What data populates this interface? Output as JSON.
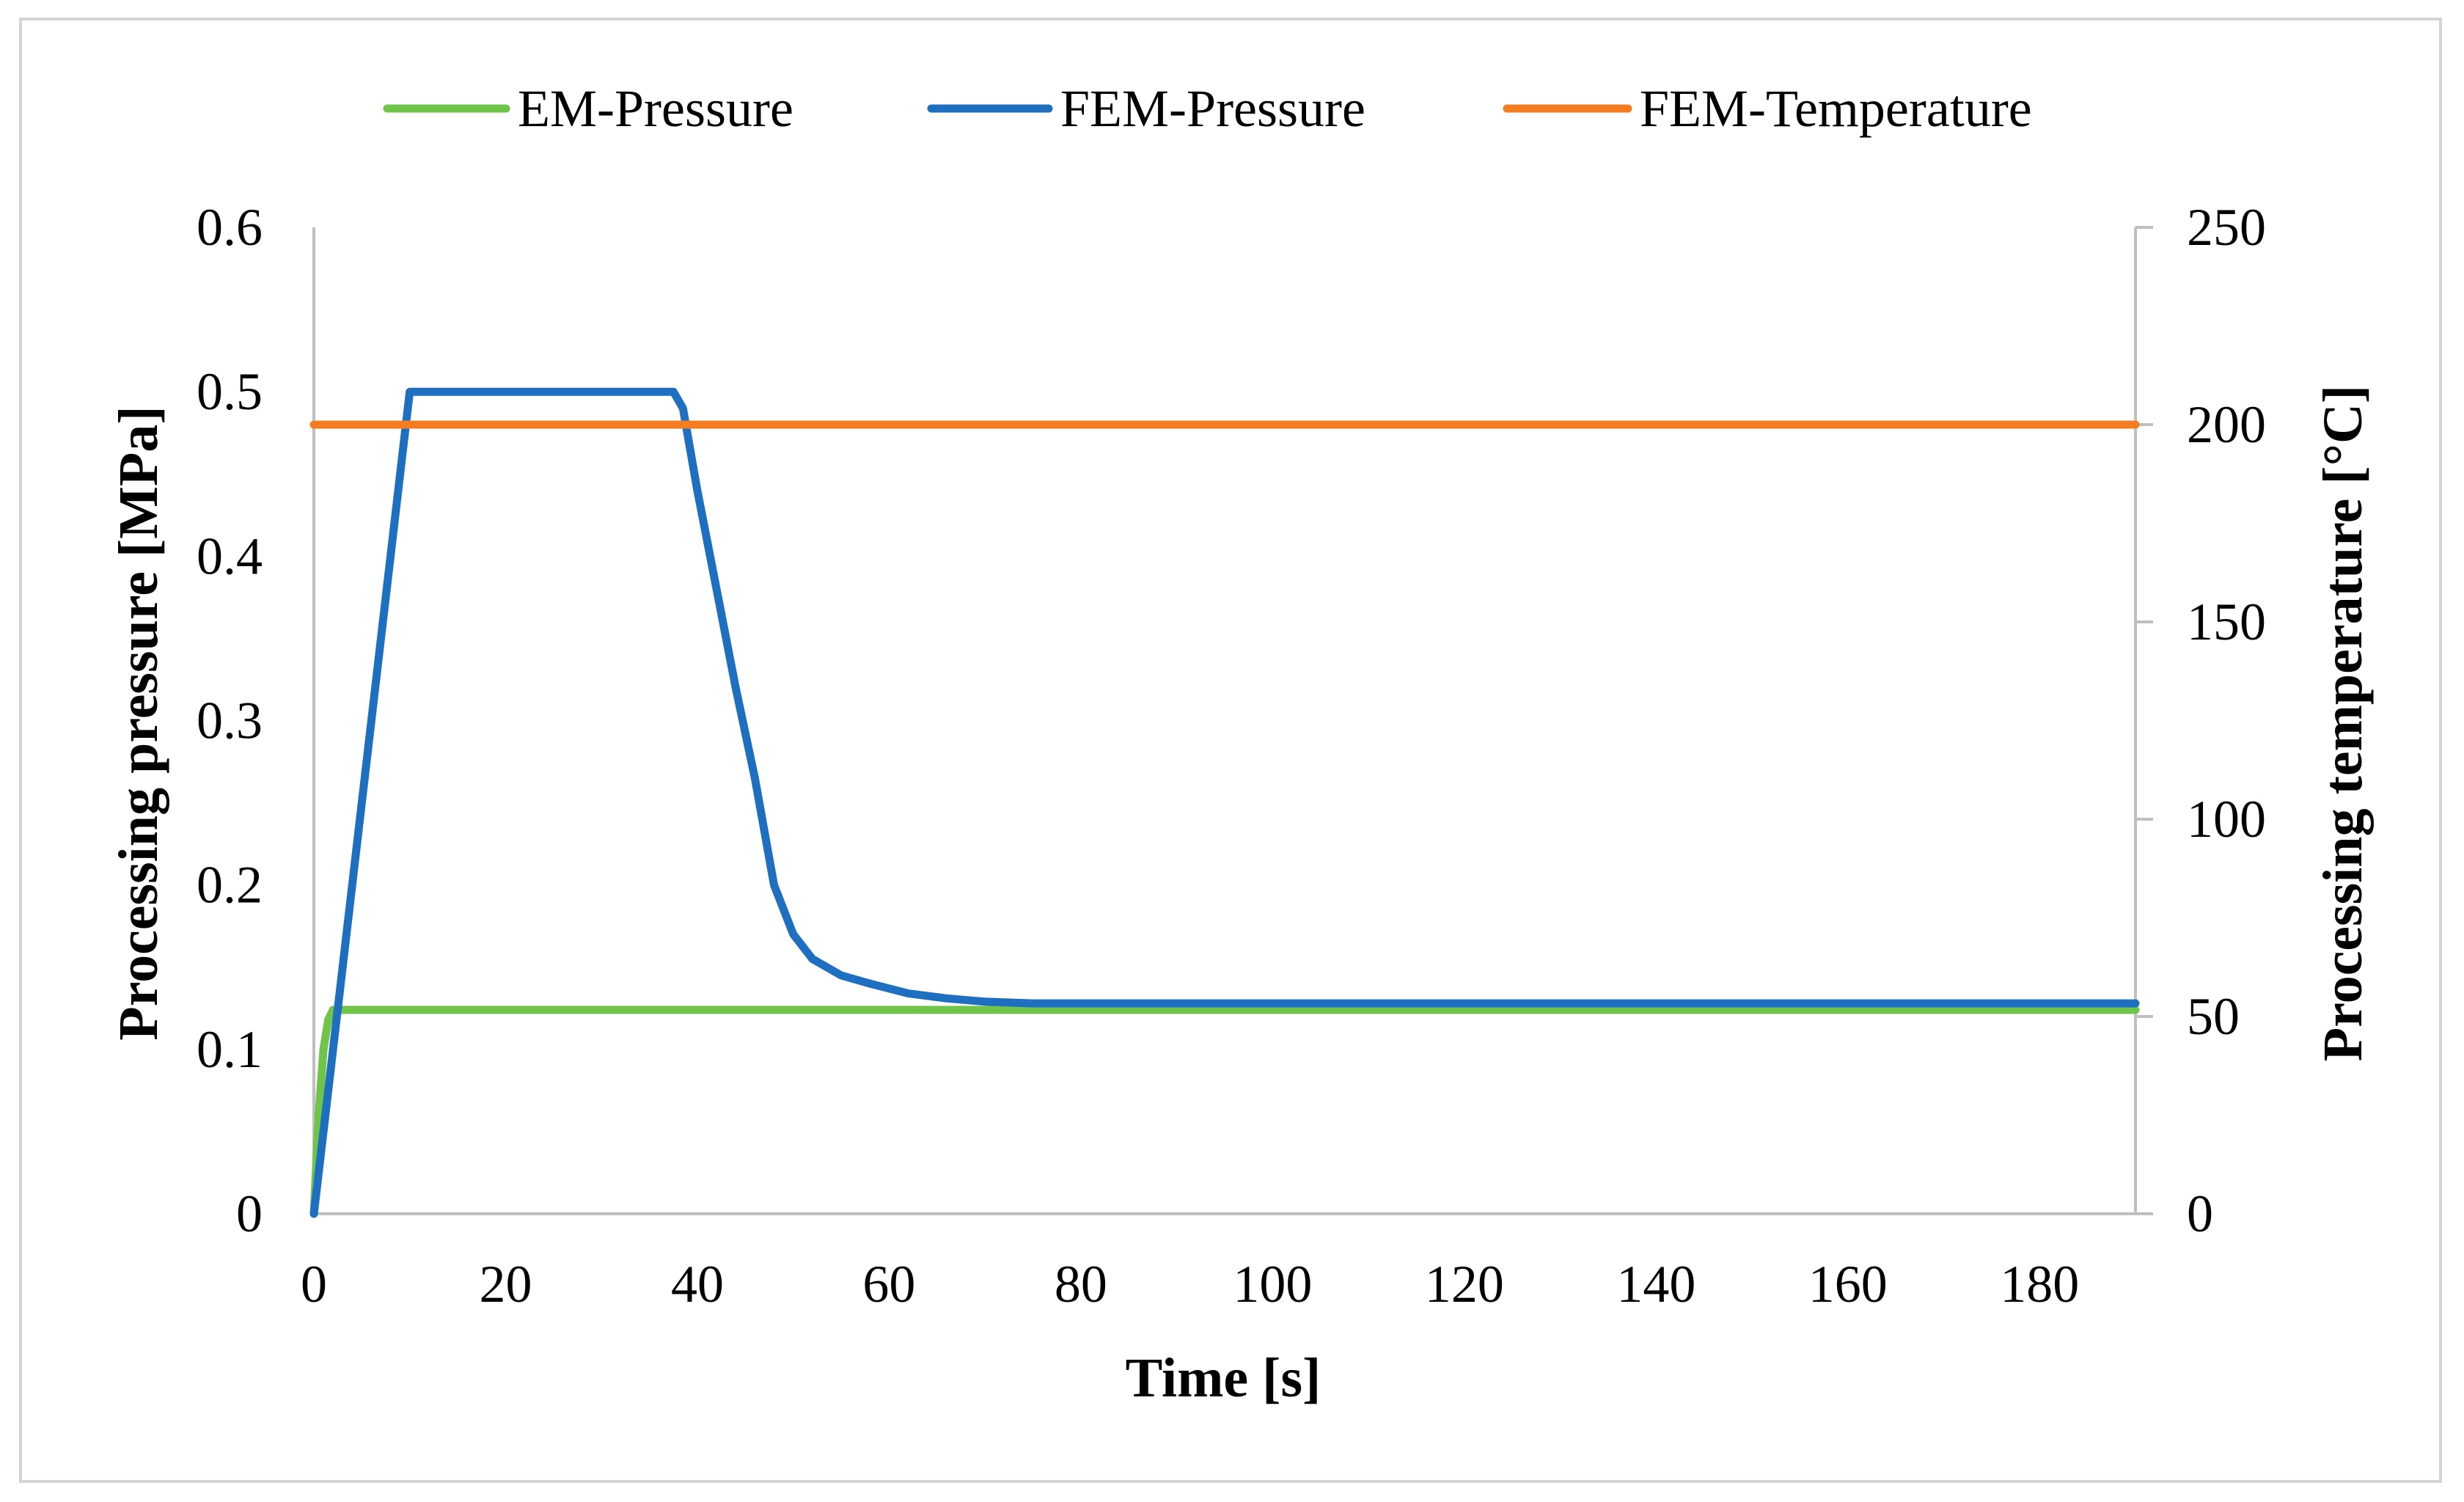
{
  "chart_data": {
    "type": "line",
    "title": "",
    "xlabel": "Time [s]",
    "ylabel": "Processing pressure [MPa]",
    "y2label": "Processing temperature [°C]",
    "xlim": [
      0,
      190
    ],
    "ylim": [
      0,
      0.6
    ],
    "y2lim": [
      0,
      250
    ],
    "xticks": [
      0,
      20,
      40,
      60,
      80,
      100,
      120,
      140,
      160,
      180
    ],
    "xtick_labels": [
      "0",
      "20",
      "40",
      "60",
      "80",
      "100",
      "120",
      "140",
      "160",
      "180"
    ],
    "yticks": [
      0,
      0.1,
      0.2,
      0.3,
      0.4,
      0.5,
      0.6
    ],
    "ytick_labels": [
      "0",
      "0.1",
      "0.2",
      "0.3",
      "0.4",
      "0.5",
      "0.6"
    ],
    "y2ticks": [
      0,
      50,
      100,
      150,
      200,
      250
    ],
    "y2tick_labels": [
      "0",
      "50",
      "100",
      "150",
      "200",
      "250"
    ],
    "grid": false,
    "legend_position": "top",
    "series": [
      {
        "name": "EM-Pressure",
        "axis": "left",
        "color": "#70c44a",
        "x": [
          0,
          0.5,
          1,
          1.5,
          2,
          190
        ],
        "y": [
          0,
          0.06,
          0.1,
          0.118,
          0.124,
          0.124
        ]
      },
      {
        "name": "FEM-Pressure",
        "axis": "left",
        "color": "#1f6fc0",
        "x": [
          0,
          10,
          37.5,
          38.5,
          40,
          42,
          44,
          46,
          48,
          50,
          52,
          55,
          58,
          62,
          66,
          70,
          75,
          80,
          190
        ],
        "y": [
          0,
          0.5,
          0.5,
          0.49,
          0.44,
          0.38,
          0.32,
          0.265,
          0.2,
          0.17,
          0.155,
          0.145,
          0.14,
          0.134,
          0.131,
          0.129,
          0.128,
          0.128,
          0.128
        ]
      },
      {
        "name": "FEM-Temperature",
        "axis": "right",
        "color": "#f47d22",
        "x": [
          0,
          190
        ],
        "y": [
          200,
          200
        ]
      }
    ]
  }
}
